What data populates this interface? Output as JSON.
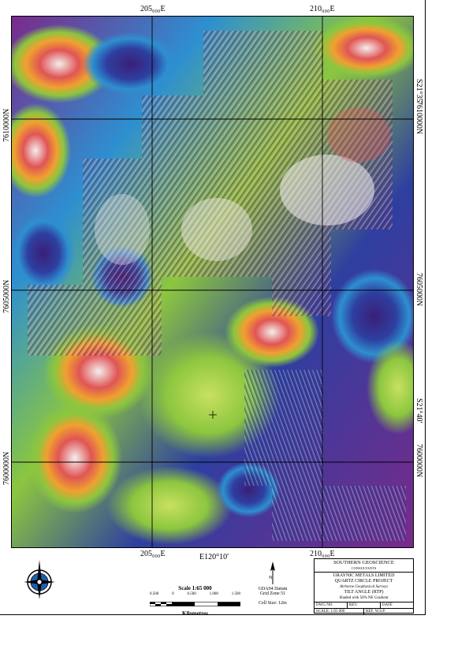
{
  "map": {
    "easting_labels": [
      "205000E",
      "210000E"
    ],
    "easting_top_labels": [
      "205₀₀₀E",
      "210₀₀₀E"
    ],
    "northing_labels": [
      "7610000N",
      "7605000N",
      "7600000N"
    ],
    "latlon_labels": [
      "S21°35′",
      "S21°40′",
      "E120°10′"
    ],
    "colors": {
      "grid": "#000000",
      "high": "#e8e0e0",
      "red": "#d23a3a",
      "green": "#8cc63f",
      "blue": "#2e3fa0",
      "purple": "#7a2a8a"
    }
  },
  "scale": {
    "title": "Scale 1:65 000",
    "ticks": [
      "0.500",
      "0",
      "0.500",
      "1.000",
      "1.500"
    ],
    "units": "Kilometres"
  },
  "north": {
    "symbol": "N",
    "datum": "GDA94 Datum",
    "zone": "Grid Zone 51",
    "cell": "Cell Size: 12m"
  },
  "compass": {
    "icon": "north-arrow-compass-icon"
  },
  "title_block": {
    "company": "SOUTHERN GEOSCIENCE",
    "company_sub": "CONSULTANTS",
    "client": "GRAYNIC METALS LIMITED",
    "project": "QUARTZ CIRCLE PROJECT",
    "survey": "Airborne Geophysical Surveys",
    "product": "TILT ANGLE (RTP)",
    "shading": "Shaded with 50% NE Gradient",
    "drawn": "DRAWN: W.S.P.",
    "scale": "SCALE: 1:65 000",
    "fields": [
      "DWG NO.",
      "REV.",
      "DATE"
    ],
    "ref": "REF: W.S.P."
  }
}
